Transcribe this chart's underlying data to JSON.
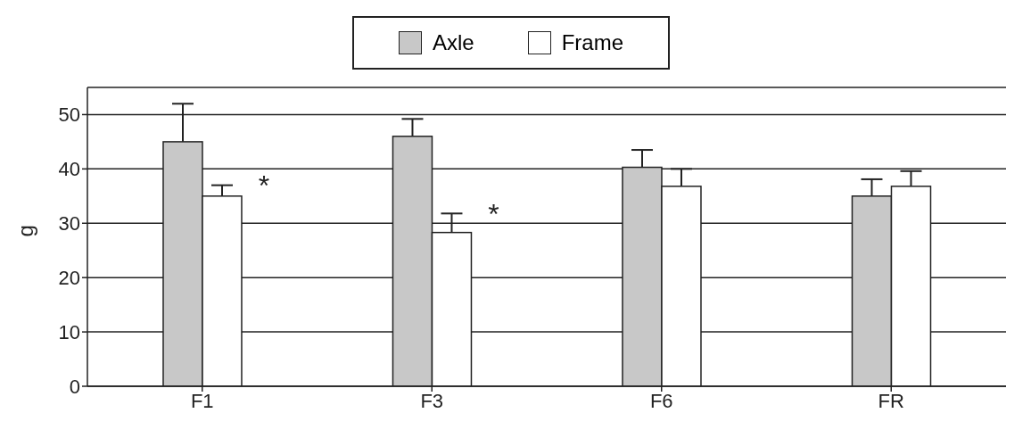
{
  "chart_data": {
    "type": "bar",
    "ylabel": "g",
    "categories": [
      "F1",
      "F3",
      "F6",
      "FR"
    ],
    "series": [
      {
        "name": "Axle",
        "color": "#c8c8c8",
        "values": [
          45,
          46,
          40.3,
          35
        ],
        "errors": [
          [
            45,
            52
          ],
          [
            46,
            49.2
          ],
          [
            40.3,
            43.5
          ],
          [
            35,
            38.1
          ]
        ]
      },
      {
        "name": "Frame",
        "color": "#ffffff",
        "values": [
          35,
          28.3,
          36.8,
          36.8
        ],
        "errors": [
          [
            35,
            37
          ],
          [
            28.3,
            31.8
          ],
          [
            36.8,
            40
          ],
          [
            36.8,
            39.6
          ]
        ]
      }
    ],
    "ylim": [
      0,
      55
    ],
    "yticks": [
      0,
      10,
      20,
      30,
      40,
      50
    ],
    "grid": "y",
    "legend": "top",
    "annotations": [
      {
        "text": "*",
        "x": "F1",
        "y": 37
      },
      {
        "text": "*",
        "x": "F3",
        "y": 31.8
      }
    ]
  }
}
